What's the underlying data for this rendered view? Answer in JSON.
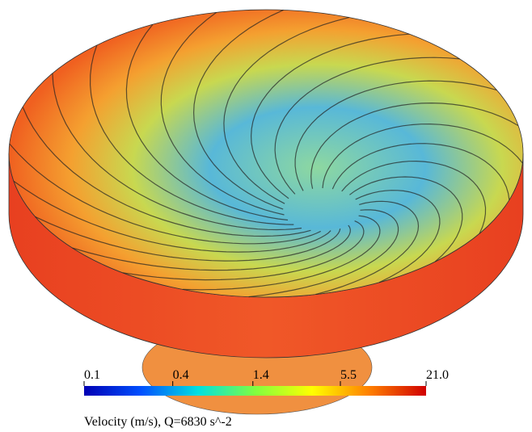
{
  "chart_data": {
    "type": "colorbar",
    "xlabel": "Velocity (m/s), Q=6830 s^-2",
    "log_scale": true,
    "xlim": [
      0.1,
      21
    ],
    "xticks": [
      0.1,
      0.4,
      1.4,
      5.5,
      {
        "value": 21,
        "label": "21.0"
      }
    ],
    "colormap": [
      "#0000b4",
      "#0050ff",
      "#00e0e0",
      "#80ff40",
      "#ffff00",
      "#ff8000",
      "#d00000"
    ]
  }
}
